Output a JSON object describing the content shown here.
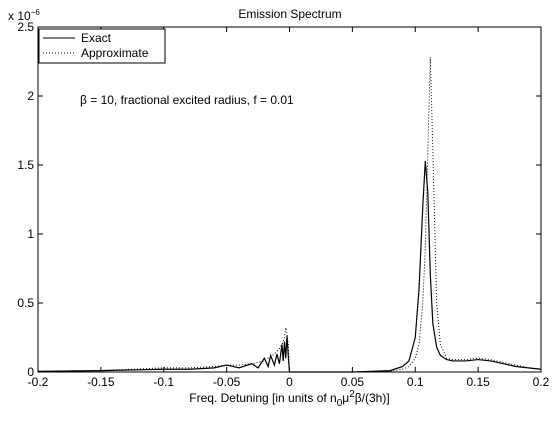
{
  "chart_data": {
    "type": "line",
    "title": "Emission Spectrum",
    "xlabel_parts": [
      {
        "text": "Freq. Detuning [in units of n"
      },
      {
        "text": "0",
        "sub": true
      },
      {
        "text": "μ"
      },
      {
        "text": "2",
        "sup": true
      },
      {
        "text": "β/(3h)]"
      }
    ],
    "y_multiplier": {
      "base": "x 10",
      "exponent": "−6"
    },
    "annotation": "β = 10, fractional excited radius, f = 0.01",
    "xlim": [
      -0.2,
      0.2
    ],
    "xticks": [
      -0.2,
      -0.15,
      -0.1,
      -0.05,
      0,
      0.05,
      0.1,
      0.15,
      0.2
    ],
    "ylim": [
      0,
      2.5
    ],
    "yticks": [
      0,
      0.5,
      1,
      1.5,
      2,
      2.5
    ],
    "legend": "upper left",
    "x": [
      -0.2,
      -0.15,
      -0.1,
      -0.08,
      -0.06,
      -0.05,
      -0.04,
      -0.03,
      -0.025,
      -0.02,
      -0.017,
      -0.015,
      -0.012,
      -0.01,
      -0.008,
      -0.006,
      -0.005,
      -0.004,
      -0.003,
      -0.002,
      -0.001,
      0,
      0.02,
      0.05,
      0.08,
      0.09,
      0.095,
      0.1,
      0.103,
      0.106,
      0.108,
      0.11,
      0.112,
      0.114,
      0.117,
      0.12,
      0.125,
      0.13,
      0.14,
      0.15,
      0.16,
      0.17,
      0.18,
      0.19,
      0.2
    ],
    "series": [
      {
        "name": "Exact",
        "color": "#000000",
        "line_style": "solid",
        "values": [
          0.005,
          0.01,
          0.02,
          0.02,
          0.03,
          0.05,
          0.03,
          0.06,
          0.03,
          0.1,
          0.04,
          0.12,
          0.05,
          0.13,
          0.06,
          0.2,
          0.08,
          0.22,
          0.1,
          0.26,
          0.12,
          0,
          0,
          0,
          0.01,
          0.04,
          0.08,
          0.25,
          0.6,
          1.2,
          1.53,
          1.3,
          0.7,
          0.35,
          0.18,
          0.12,
          0.09,
          0.08,
          0.08,
          0.09,
          0.08,
          0.06,
          0.04,
          0.03,
          0.02
        ]
      },
      {
        "name": "Approximate",
        "color": "#000000",
        "line_style": "dotted",
        "values": [
          0.005,
          0.01,
          0.03,
          0.03,
          0.04,
          0.05,
          0.05,
          0.06,
          0.07,
          0.08,
          0.1,
          0.11,
          0.13,
          0.15,
          0.17,
          0.2,
          0.22,
          0.25,
          0.32,
          0.28,
          0.2,
          0,
          0,
          0,
          0.005,
          0.02,
          0.04,
          0.1,
          0.2,
          0.5,
          0.9,
          1.6,
          2.28,
          1.6,
          0.5,
          0.2,
          0.1,
          0.09,
          0.09,
          0.1,
          0.09,
          0.07,
          0.05,
          0.03,
          0.02
        ]
      }
    ]
  }
}
